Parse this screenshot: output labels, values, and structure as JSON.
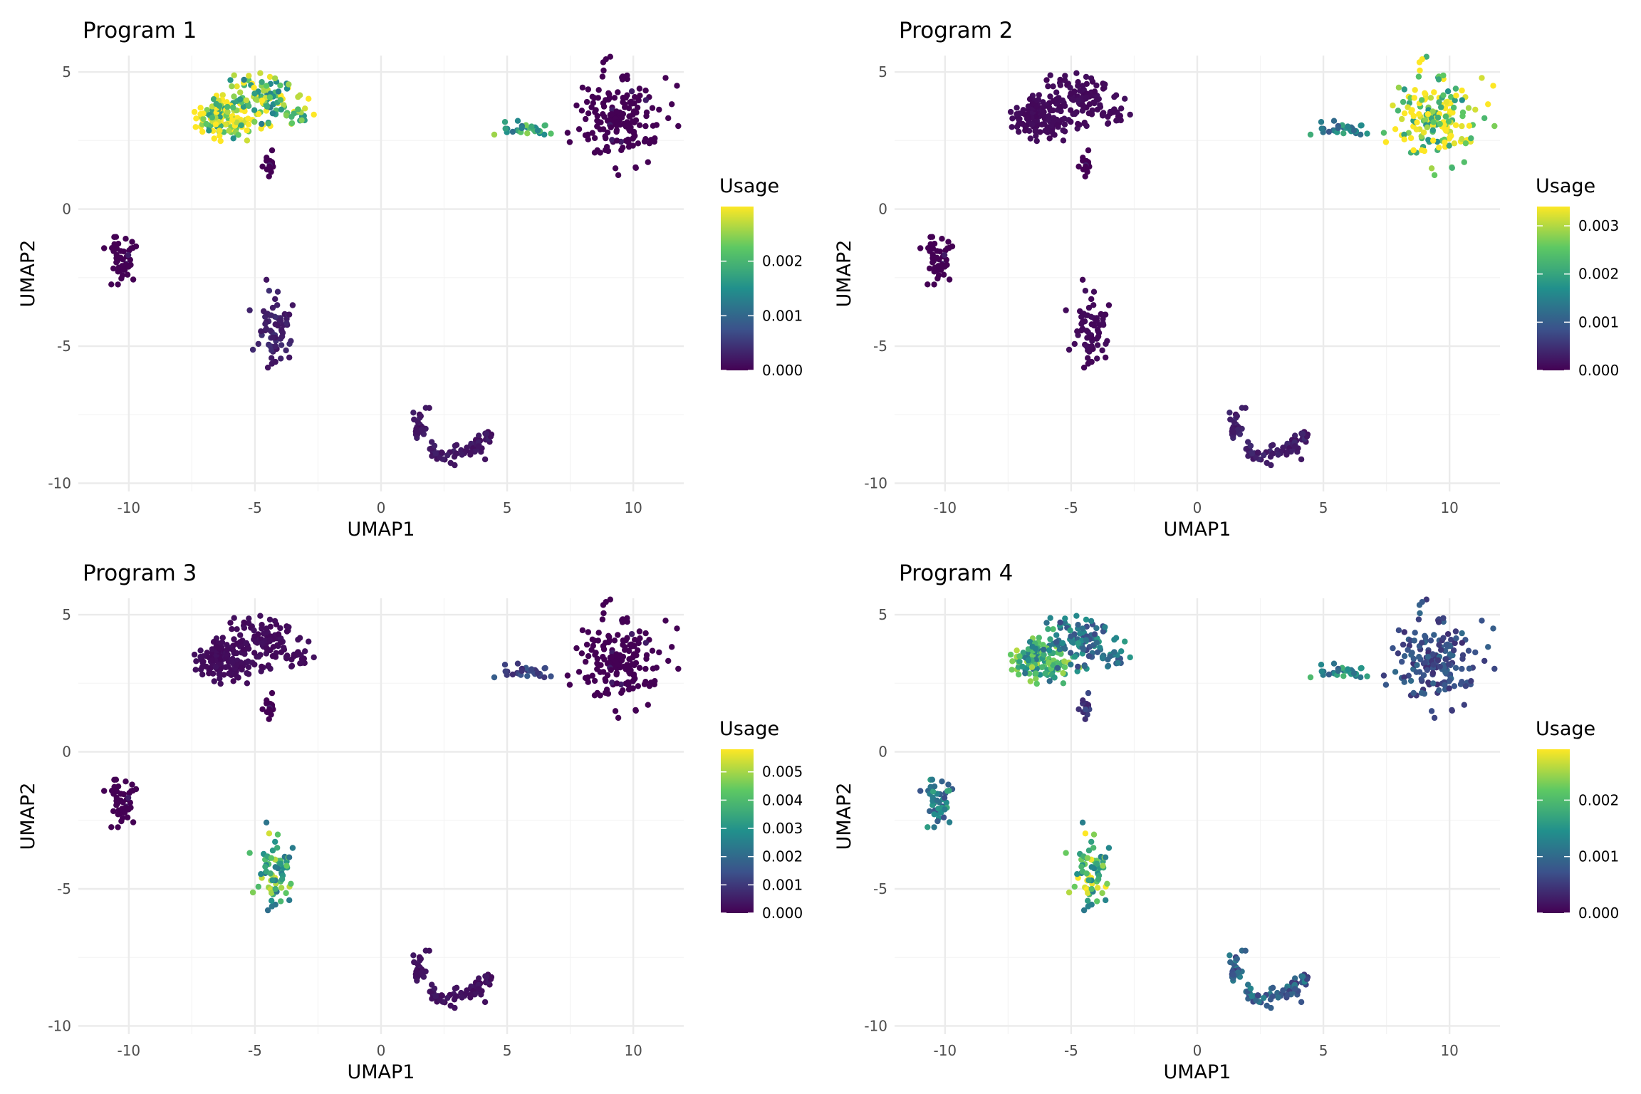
{
  "colors": {
    "background": "#ffffff",
    "grid_major": "#ebebeb",
    "grid_minor": "#f4f4f4",
    "viridis_stops": [
      "#440154",
      "#3b528b",
      "#21908c",
      "#5dc863",
      "#fde725"
    ]
  },
  "chart_data": [
    {
      "type": "scatter",
      "title": "Program 1",
      "xlabel": "UMAP1",
      "ylabel": "UMAP2",
      "xlim": [
        -12,
        12
      ],
      "ylim": [
        -10.3,
        5.6
      ],
      "x_ticks": [
        -10,
        -5,
        0,
        5,
        10
      ],
      "x_tick_labels": [
        "-10",
        "-5",
        "0",
        "5",
        "10"
      ],
      "y_ticks": [
        -10,
        -5,
        0,
        5
      ],
      "y_tick_labels": [
        "-10",
        "-5",
        "0",
        "5"
      ],
      "legend": {
        "title": "Usage",
        "position": "right",
        "max": 0.003,
        "ticks": [
          0,
          0.001,
          0.002
        ],
        "tick_labels": [
          "0.000",
          "0.001",
          "0.002"
        ]
      },
      "colormap": "viridis",
      "cluster_usage": {
        "A": 0.0026,
        "B": 0.0022,
        "C": 0.0,
        "D": 0.0,
        "E": 0.0003,
        "F": 0.0018,
        "G": 0.0,
        "H": 0.0002
      }
    },
    {
      "type": "scatter",
      "title": "Program 2",
      "xlabel": "UMAP1",
      "ylabel": "UMAP2",
      "xlim": [
        -12,
        12
      ],
      "ylim": [
        -10.3,
        5.6
      ],
      "x_ticks": [
        -10,
        -5,
        0,
        5,
        10
      ],
      "x_tick_labels": [
        "-10",
        "-5",
        "0",
        "5",
        "10"
      ],
      "y_ticks": [
        -10,
        -5,
        0,
        5
      ],
      "y_tick_labels": [
        "-10",
        "-5",
        "0",
        "5"
      ],
      "legend": {
        "title": "Usage",
        "position": "right",
        "max": 0.0034,
        "ticks": [
          0,
          0.001,
          0.002,
          0.003
        ],
        "tick_labels": [
          "0.000",
          "0.001",
          "0.002",
          "0.003"
        ]
      },
      "colormap": "viridis",
      "cluster_usage": {
        "A": 0.0001,
        "B": 0.0001,
        "C": 0.0,
        "D": 0.0,
        "E": 0.0001,
        "F": 0.0015,
        "G": 0.003,
        "H": 0.0003
      }
    },
    {
      "type": "scatter",
      "title": "Program 3",
      "xlabel": "UMAP1",
      "ylabel": "UMAP2",
      "xlim": [
        -12,
        12
      ],
      "ylim": [
        -10.3,
        5.6
      ],
      "x_ticks": [
        -10,
        -5,
        0,
        5,
        10
      ],
      "x_tick_labels": [
        "-10",
        "-5",
        "0",
        "5",
        "10"
      ],
      "y_ticks": [
        -10,
        -5,
        0,
        5
      ],
      "y_tick_labels": [
        "-10",
        "-5",
        "0",
        "5"
      ],
      "legend": {
        "title": "Usage",
        "position": "right",
        "max": 0.0058,
        "ticks": [
          0,
          0.001,
          0.002,
          0.003,
          0.004,
          0.005
        ],
        "tick_labels": [
          "0.000",
          "0.001",
          "0.002",
          "0.003",
          "0.004",
          "0.005"
        ]
      },
      "colormap": "viridis",
      "cluster_usage": {
        "A": 0.0002,
        "B": 0.0002,
        "C": 0.0,
        "D": 0.0,
        "E": 0.0038,
        "F": 0.0012,
        "G": 0.0,
        "H": 0.0003
      }
    },
    {
      "type": "scatter",
      "title": "Program 4",
      "xlabel": "UMAP1",
      "ylabel": "UMAP2",
      "xlim": [
        -12,
        12
      ],
      "ylim": [
        -10.3,
        5.6
      ],
      "x_ticks": [
        -10,
        -5,
        0,
        5,
        10
      ],
      "x_tick_labels": [
        "-10",
        "-5",
        "0",
        "5",
        "10"
      ],
      "y_ticks": [
        -10,
        -5,
        0,
        5
      ],
      "y_tick_labels": [
        "-10",
        "-5",
        "0",
        "5"
      ],
      "legend": {
        "title": "Usage",
        "position": "right",
        "max": 0.0029,
        "ticks": [
          0,
          0.001,
          0.002
        ],
        "tick_labels": [
          "0.000",
          "0.001",
          "0.002"
        ]
      },
      "colormap": "viridis",
      "cluster_usage": {
        "A": 0.0018,
        "B": 0.0011,
        "C": 0.0005,
        "D": 0.0012,
        "E": 0.0021,
        "F": 0.0014,
        "G": 0.0007,
        "H": 0.0009
      }
    }
  ],
  "clusters": [
    {
      "id": "A",
      "n": 130,
      "center": [
        -6.2,
        3.4
      ],
      "spread": [
        0.55,
        0.45
      ]
    },
    {
      "id": "B",
      "n": 90,
      "center": [
        -4.6,
        4.1
      ],
      "spread": [
        0.6,
        0.45
      ]
    },
    {
      "id": "B2",
      "n": 20,
      "center": [
        -3.3,
        3.5
      ],
      "spread": [
        0.25,
        0.25
      ]
    },
    {
      "id": "C",
      "n": 14,
      "center": [
        -4.35,
        1.7
      ],
      "spread": [
        0.12,
        0.22
      ]
    },
    {
      "id": "D",
      "n": 45,
      "center": [
        -10.2,
        -1.8
      ],
      "spread": [
        0.25,
        0.45
      ]
    },
    {
      "id": "E",
      "n": 65,
      "center": [
        -4.2,
        -4.5
      ],
      "spread": [
        0.35,
        0.55
      ]
    },
    {
      "id": "F",
      "n": 28,
      "center": [
        5.7,
        2.9
      ],
      "spread": [
        0.7,
        0.15
      ]
    },
    {
      "id": "G",
      "n": 170,
      "center": [
        9.4,
        3.3
      ],
      "spread": [
        0.75,
        0.75
      ]
    },
    {
      "id": "H",
      "n": 85,
      "center": [
        2.8,
        -8.5
      ],
      "spread": [
        1.0,
        0.45
      ]
    }
  ]
}
